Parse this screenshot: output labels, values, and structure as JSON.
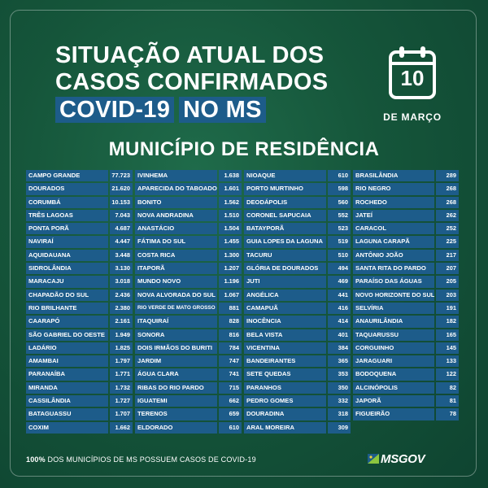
{
  "title": {
    "line1": "SITUAÇÃO ATUAL DOS",
    "line2": "CASOS CONFIRMADOS",
    "line3a": "COVID-19",
    "line3b": "NO MS"
  },
  "calendar": {
    "day": "10",
    "month": "DE MARÇO"
  },
  "subtitle": "MUNICÍPIO DE RESIDÊNCIA",
  "columns": [
    [
      {
        "name": "CAMPO GRANDE",
        "value": "77.723"
      },
      {
        "name": "DOURADOS",
        "value": "21.620"
      },
      {
        "name": "CORUMBÁ",
        "value": "10.153"
      },
      {
        "name": "TRÊS LAGOAS",
        "value": "7.043"
      },
      {
        "name": "PONTA PORÃ",
        "value": "4.687"
      },
      {
        "name": "NAVIRAÍ",
        "value": "4.447"
      },
      {
        "name": "AQUIDAUANA",
        "value": "3.448"
      },
      {
        "name": "SIDROLÂNDIA",
        "value": "3.130"
      },
      {
        "name": "MARACAJU",
        "value": "3.018"
      },
      {
        "name": "CHAPADÃO DO SUL",
        "value": "2.436"
      },
      {
        "name": "RIO BRILHANTE",
        "value": "2.380"
      },
      {
        "name": "CAARAPÓ",
        "value": "2.161"
      },
      {
        "name": "SÃO GABRIEL DO OESTE",
        "value": "1.949"
      },
      {
        "name": "LADÁRIO",
        "value": "1.825"
      },
      {
        "name": "AMAMBAI",
        "value": "1.797"
      },
      {
        "name": "PARANAÍBA",
        "value": "1.771"
      },
      {
        "name": "MIRANDA",
        "value": "1.732"
      },
      {
        "name": "CASSILÂNDIA",
        "value": "1.727"
      },
      {
        "name": "BATAGUASSU",
        "value": "1.707"
      },
      {
        "name": "COXIM",
        "value": "1.662"
      }
    ],
    [
      {
        "name": "IVINHEMA",
        "value": "1.638"
      },
      {
        "name": "APARECIDA DO TABOADO",
        "value": "1.601"
      },
      {
        "name": "BONITO",
        "value": "1.562"
      },
      {
        "name": "NOVA ANDRADINA",
        "value": "1.510"
      },
      {
        "name": "ANASTÁCIO",
        "value": "1.504"
      },
      {
        "name": "FÁTIMA DO SUL",
        "value": "1.455"
      },
      {
        "name": "COSTA RICA",
        "value": "1.300"
      },
      {
        "name": "ITAPORÃ",
        "value": "1.207"
      },
      {
        "name": "MUNDO NOVO",
        "value": "1.196"
      },
      {
        "name": "NOVA ALVORADA DO SUL",
        "value": "1.067"
      },
      {
        "name": "RIO VERDE DE MATO GROSSO",
        "value": "881"
      },
      {
        "name": "ITAQUIRAÍ",
        "value": "828"
      },
      {
        "name": "SONORA",
        "value": "816"
      },
      {
        "name": "DOIS IRMÃOS DO BURITI",
        "value": "784"
      },
      {
        "name": "JARDIM",
        "value": "747"
      },
      {
        "name": "ÁGUA CLARA",
        "value": "741"
      },
      {
        "name": "RIBAS DO RIO PARDO",
        "value": "715"
      },
      {
        "name": "IGUATEMI",
        "value": "662"
      },
      {
        "name": "TERENOS",
        "value": "659"
      },
      {
        "name": "ELDORADO",
        "value": "610"
      }
    ],
    [
      {
        "name": "NIOAQUE",
        "value": "610"
      },
      {
        "name": "PORTO MURTINHO",
        "value": "598"
      },
      {
        "name": "DEODÁPOLIS",
        "value": "560"
      },
      {
        "name": "CORONEL SAPUCAIA",
        "value": "552"
      },
      {
        "name": "BATAYPORÃ",
        "value": "523"
      },
      {
        "name": "GUIA LOPES DA LAGUNA",
        "value": "519"
      },
      {
        "name": "TACURU",
        "value": "510"
      },
      {
        "name": "GLÓRIA DE DOURADOS",
        "value": "494"
      },
      {
        "name": "JUTI",
        "value": "469"
      },
      {
        "name": "ANGÉLICA",
        "value": "441"
      },
      {
        "name": "CAMAPUÃ",
        "value": "416"
      },
      {
        "name": "INOCÊNCIA",
        "value": "414"
      },
      {
        "name": "BELA VISTA",
        "value": "401"
      },
      {
        "name": "VICENTINA",
        "value": "384"
      },
      {
        "name": "BANDEIRANTES",
        "value": "365"
      },
      {
        "name": "SETE QUEDAS",
        "value": "353"
      },
      {
        "name": "PARANHOS",
        "value": "350"
      },
      {
        "name": "PEDRO GOMES",
        "value": "332"
      },
      {
        "name": "DOURADINA",
        "value": "318"
      },
      {
        "name": "ARAL MOREIRA",
        "value": "309"
      }
    ],
    [
      {
        "name": "BRASILÂNDIA",
        "value": "289"
      },
      {
        "name": "RIO NEGRO",
        "value": "268"
      },
      {
        "name": "ROCHEDO",
        "value": "268"
      },
      {
        "name": "JATEÍ",
        "value": "262"
      },
      {
        "name": "CARACOL",
        "value": "252"
      },
      {
        "name": "LAGUNA CARAPÃ",
        "value": "225"
      },
      {
        "name": "ANTÔNIO JOÃO",
        "value": "217"
      },
      {
        "name": "SANTA RITA DO PARDO",
        "value": "207"
      },
      {
        "name": "PARAÍSO DAS ÁGUAS",
        "value": "205"
      },
      {
        "name": "NOVO HORIZONTE DO SUL",
        "value": "203"
      },
      {
        "name": "SELVÍRIA",
        "value": "191"
      },
      {
        "name": "ANAURILÂNDIA",
        "value": "182"
      },
      {
        "name": "TAQUARUSSU",
        "value": "165"
      },
      {
        "name": "CORGUINHO",
        "value": "145"
      },
      {
        "name": "JARAGUARI",
        "value": "133"
      },
      {
        "name": "BODOQUENA",
        "value": "122"
      },
      {
        "name": "ALCINÓPOLIS",
        "value": "82"
      },
      {
        "name": "JAPORÃ",
        "value": "81"
      },
      {
        "name": "FIGUEIRÃO",
        "value": "78"
      }
    ]
  ],
  "footer": {
    "bold": "100%",
    "rest": " DOS MUNICÍPIOS DE MS POSSUEM CASOS DE COVID-19"
  },
  "logo": {
    "text": "MSGOV"
  },
  "colors": {
    "background": "#15553a",
    "cell": "#1d5c8a",
    "text": "#ffffff",
    "logo_green": "#8cc63f"
  }
}
